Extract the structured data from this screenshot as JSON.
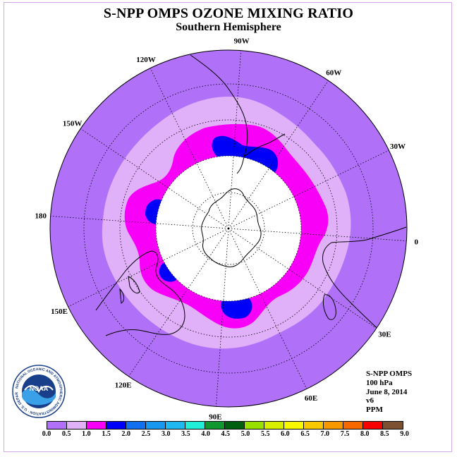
{
  "title": "S-NPP OMPS OZONE MIXING RATIO",
  "subtitle": "Southern Hemisphere",
  "longitude_labels": [
    {
      "text": "90W",
      "lon": -90
    },
    {
      "text": "60W",
      "lon": -60
    },
    {
      "text": "30W",
      "lon": -30
    },
    {
      "text": "0",
      "lon": 0
    },
    {
      "text": "30E",
      "lon": 30
    },
    {
      "text": "60E",
      "lon": 60
    },
    {
      "text": "90E",
      "lon": 90
    },
    {
      "text": "120E",
      "lon": 120
    },
    {
      "text": "150E",
      "lon": 150
    },
    {
      "text": "180",
      "lon": 180
    },
    {
      "text": "150W",
      "lon": -150
    },
    {
      "text": "120W",
      "lon": -120
    }
  ],
  "info": {
    "instrument": "S-NPP OMPS",
    "level": "100 hPa",
    "date": "June 8, 2014",
    "version": "v6",
    "units": "PPM"
  },
  "logo": {
    "text": "NOAA",
    "ring_text": "NATIONAL OCEANIC AND ATMOSPHERIC ADMINISTRATION · U.S. DEPARTMENT OF COMMERCE"
  },
  "colorbar": {
    "labels": [
      "0.0",
      "0.5",
      "1.0",
      "1.5",
      "2.0",
      "2.5",
      "3.0",
      "3.5",
      "4.0",
      "4.5",
      "5.0",
      "5.5",
      "6.0",
      "6.5",
      "7.0",
      "7.5",
      "8.0",
      "8.5",
      "9.0"
    ],
    "colors": [
      "#b070f8",
      "#e0b0f8",
      "#f800f8",
      "#0000f8",
      "#1070f0",
      "#1898f0",
      "#20b8f0",
      "#20f0d8",
      "#109830",
      "#006010",
      "#98e000",
      "#d8f000",
      "#f8f800",
      "#f8c800",
      "#f89800",
      "#f86800",
      "#f80000",
      "#7c5030"
    ]
  },
  "field": {
    "background_color": "#b070f8",
    "no_data_color": "#ffffff",
    "contour_levels": [
      0.5,
      1.0,
      1.5
    ],
    "blue_patches": 4
  }
}
